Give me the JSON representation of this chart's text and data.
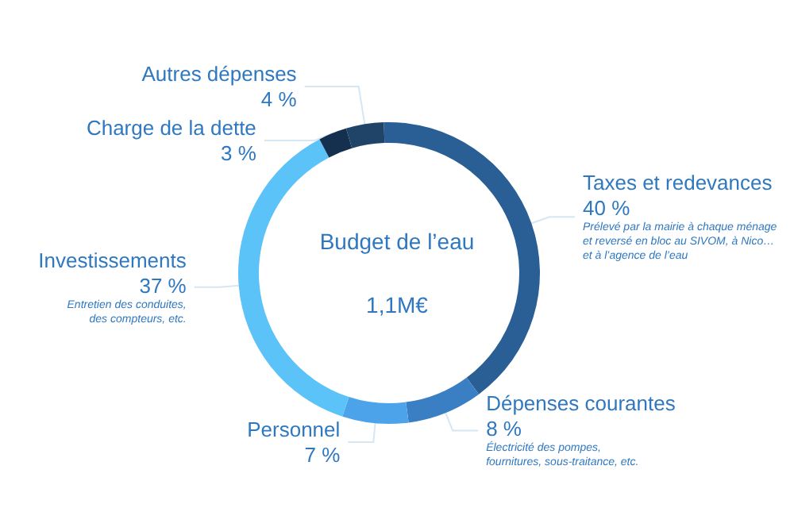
{
  "chart_data": {
    "type": "donut",
    "title": "Budget de l’eau",
    "subtitle": "1,1M€",
    "categories": [
      "Taxes et redevances",
      "Dépenses courantes",
      "Personnel",
      "Investissements",
      "Charge de la dette",
      "Autres dépenses"
    ],
    "values": [
      40,
      8,
      7,
      37,
      3,
      4
    ],
    "colors": [
      "#2a5f95",
      "#3a7ec4",
      "#4ca3ea",
      "#5bc3f8",
      "#152f4e",
      "#1f4468"
    ],
    "value_labels": [
      "40 %",
      "8 %",
      "7 %",
      "37 %",
      "3 %",
      "4 %"
    ],
    "annotations": [
      {
        "text": "Prélevé par la mairie à chaque ménage\net reversé en bloc au SIVOM, à Nico…\net à l’agence de l’eau",
        "x": "Taxes et redevances"
      },
      {
        "text": "Électricité des pompes,\nfournitures, sous-traitance, etc.",
        "x": "Dépenses courantes"
      },
      {
        "text": "Entretien des conduites,\ndes compteurs, etc.",
        "x": "Investissements"
      }
    ]
  }
}
